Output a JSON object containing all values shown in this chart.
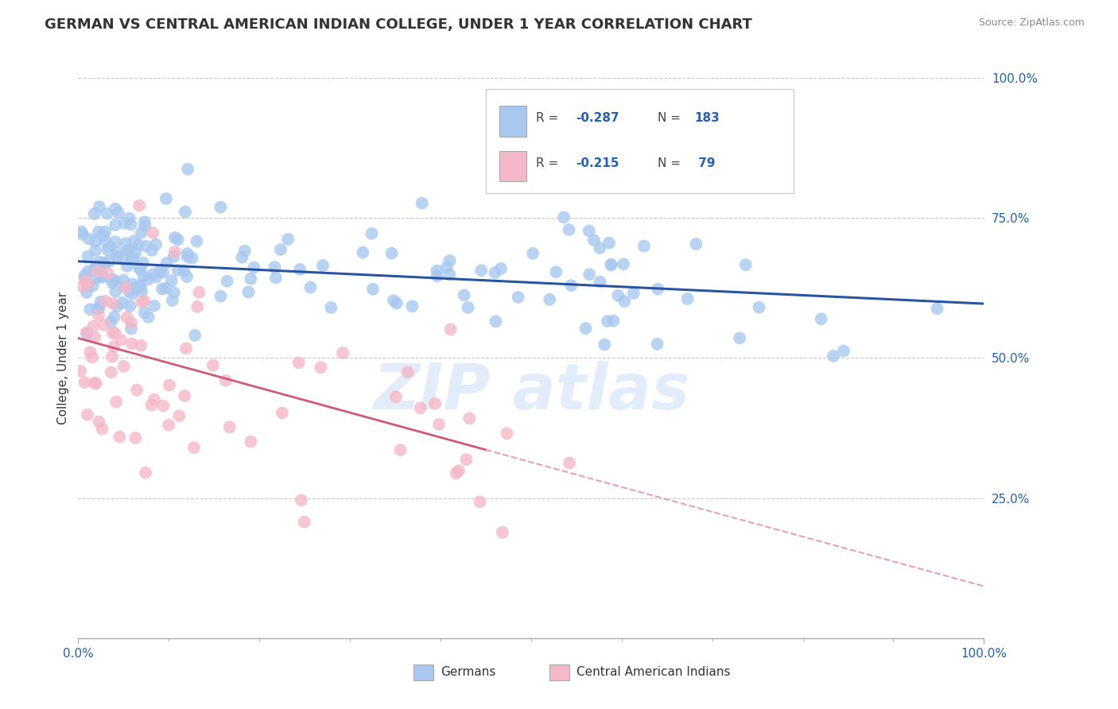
{
  "title": "GERMAN VS CENTRAL AMERICAN INDIAN COLLEGE, UNDER 1 YEAR CORRELATION CHART",
  "source": "Source: ZipAtlas.com",
  "ylabel": "College, Under 1 year",
  "german_R": -0.287,
  "german_N": 183,
  "ca_indian_R": -0.215,
  "ca_indian_N": 79,
  "german_color": "#a8c8f0",
  "ca_indian_color": "#f4b8c8",
  "german_line_color": "#2855a0",
  "ca_indian_line_color": "#d05878",
  "ca_indian_line_color_dashed": "#e8a0b0",
  "legend_labels": [
    "Germans",
    "Central American Indians"
  ],
  "title_fontsize": 13,
  "label_fontsize": 11,
  "tick_fontsize": 11,
  "source_fontsize": 9,
  "background_color": "#ffffff",
  "grid_color": "#c8c8c8",
  "legend_R_color": "#2060c0",
  "tick_color": "#2060c0",
  "xtick_color": "#555555"
}
